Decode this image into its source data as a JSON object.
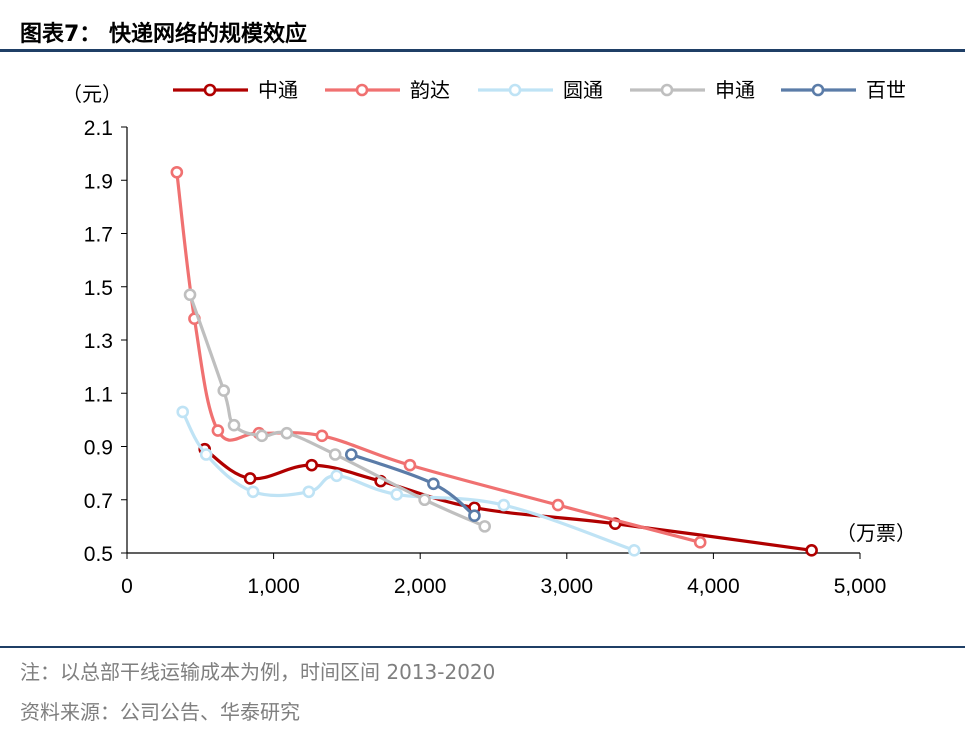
{
  "title": "图表7：  快递网络的规模效应",
  "notes": {
    "note": "注：以总部干线运输成本为例，时间区间 2013-2020",
    "source": "资料来源：公司公告、华泰研究"
  },
  "chart_data": {
    "type": "line",
    "title": "",
    "ylabel": "（元）",
    "xlabel": "（万票）",
    "xlim": [
      0,
      5000
    ],
    "ylim": [
      0.5,
      2.1
    ],
    "x_ticks": [
      0,
      1000,
      2000,
      3000,
      4000,
      5000
    ],
    "x_tick_labels": [
      "0",
      "1,000",
      "2,000",
      "3,000",
      "4,000",
      "5,000"
    ],
    "y_ticks": [
      0.5,
      0.7,
      0.9,
      1.1,
      1.3,
      1.5,
      1.7,
      1.9,
      2.1
    ],
    "y_tick_labels": [
      "0.5",
      "0.7",
      "0.9",
      "1.1",
      "1.3",
      "1.5",
      "1.7",
      "1.9",
      "2.1"
    ],
    "grid": false,
    "legend_position": "top",
    "series": [
      {
        "name": "中通",
        "color": "#b00000",
        "points": [
          [
            530,
            0.89
          ],
          [
            840,
            0.78
          ],
          [
            1260,
            0.83
          ],
          [
            1730,
            0.77
          ],
          [
            2370,
            0.67
          ],
          [
            3330,
            0.61
          ],
          [
            4670,
            0.51
          ]
        ]
      },
      {
        "name": "韵达",
        "color": "#f07171",
        "points": [
          [
            340,
            1.93
          ],
          [
            460,
            1.38
          ],
          [
            620,
            0.96
          ],
          [
            900,
            0.95
          ],
          [
            1330,
            0.94
          ],
          [
            1930,
            0.83
          ],
          [
            2940,
            0.68
          ],
          [
            3910,
            0.54
          ]
        ]
      },
      {
        "name": "圆通",
        "color": "#bfe3f5",
        "points": [
          [
            380,
            1.03
          ],
          [
            540,
            0.87
          ],
          [
            860,
            0.73
          ],
          [
            1240,
            0.73
          ],
          [
            1430,
            0.79
          ],
          [
            1840,
            0.72
          ],
          [
            2570,
            0.68
          ],
          [
            3460,
            0.51
          ]
        ]
      },
      {
        "name": "申通",
        "color": "#bfbfbf",
        "points": [
          [
            430,
            1.47
          ],
          [
            660,
            1.11
          ],
          [
            730,
            0.98
          ],
          [
            920,
            0.94
          ],
          [
            1090,
            0.95
          ],
          [
            1420,
            0.87
          ],
          [
            2030,
            0.7
          ],
          [
            2440,
            0.6
          ]
        ]
      },
      {
        "name": "百世",
        "color": "#5b7ca8",
        "points": [
          [
            1530,
            0.87
          ],
          [
            2090,
            0.76
          ],
          [
            2370,
            0.64
          ]
        ]
      }
    ]
  }
}
